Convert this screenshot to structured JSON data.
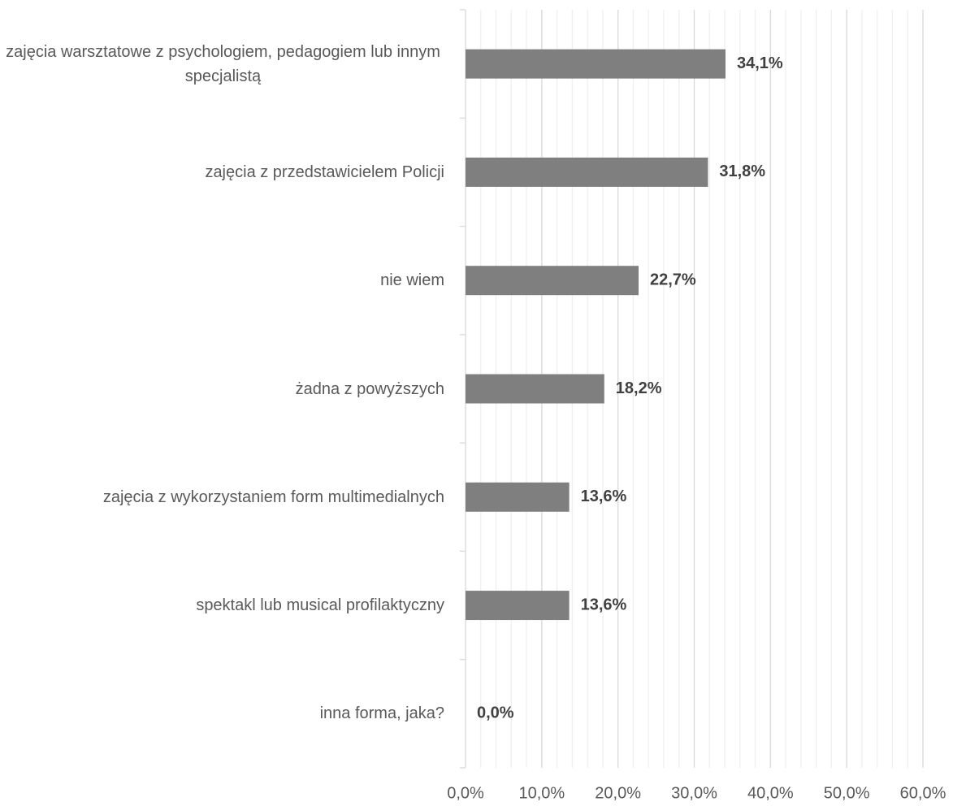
{
  "chart_data": {
    "type": "barh",
    "categories": [
      "zajęcia warsztatowe z psychologiem, pedagogiem lub innym specjalistą",
      "zajęcia z przedstawicielem Policji",
      "nie wiem",
      "żadna z powyższych",
      "zajęcia z wykorzystaniem form multimedialnych",
      "spektakl lub musical profilaktyczny",
      "inna forma, jaka?"
    ],
    "values": [
      34.1,
      31.8,
      22.7,
      18.2,
      13.6,
      13.6,
      0.0
    ],
    "value_labels": [
      "34,1%",
      "31,8%",
      "22,7%",
      "18,2%",
      "13,6%",
      "13,6%",
      "0,0%"
    ],
    "color": "#7f7f7f",
    "xlim": [
      0,
      60
    ],
    "xticks": [
      {
        "value": 0,
        "label": "0,0%"
      },
      {
        "value": 10,
        "label": "10,0%"
      },
      {
        "value": 20,
        "label": "20,0%"
      },
      {
        "value": 30,
        "label": "30,0%"
      },
      {
        "value": 40,
        "label": "40,0%"
      },
      {
        "value": 50,
        "label": "50,0%"
      },
      {
        "value": 60,
        "label": "60,0%"
      }
    ],
    "xticks_minor": [
      2,
      4,
      6,
      8,
      12,
      14,
      16,
      18,
      22,
      24,
      26,
      28,
      32,
      34,
      36,
      38,
      42,
      44,
      46,
      48,
      52,
      54,
      56,
      58
    ],
    "grid": true
  }
}
